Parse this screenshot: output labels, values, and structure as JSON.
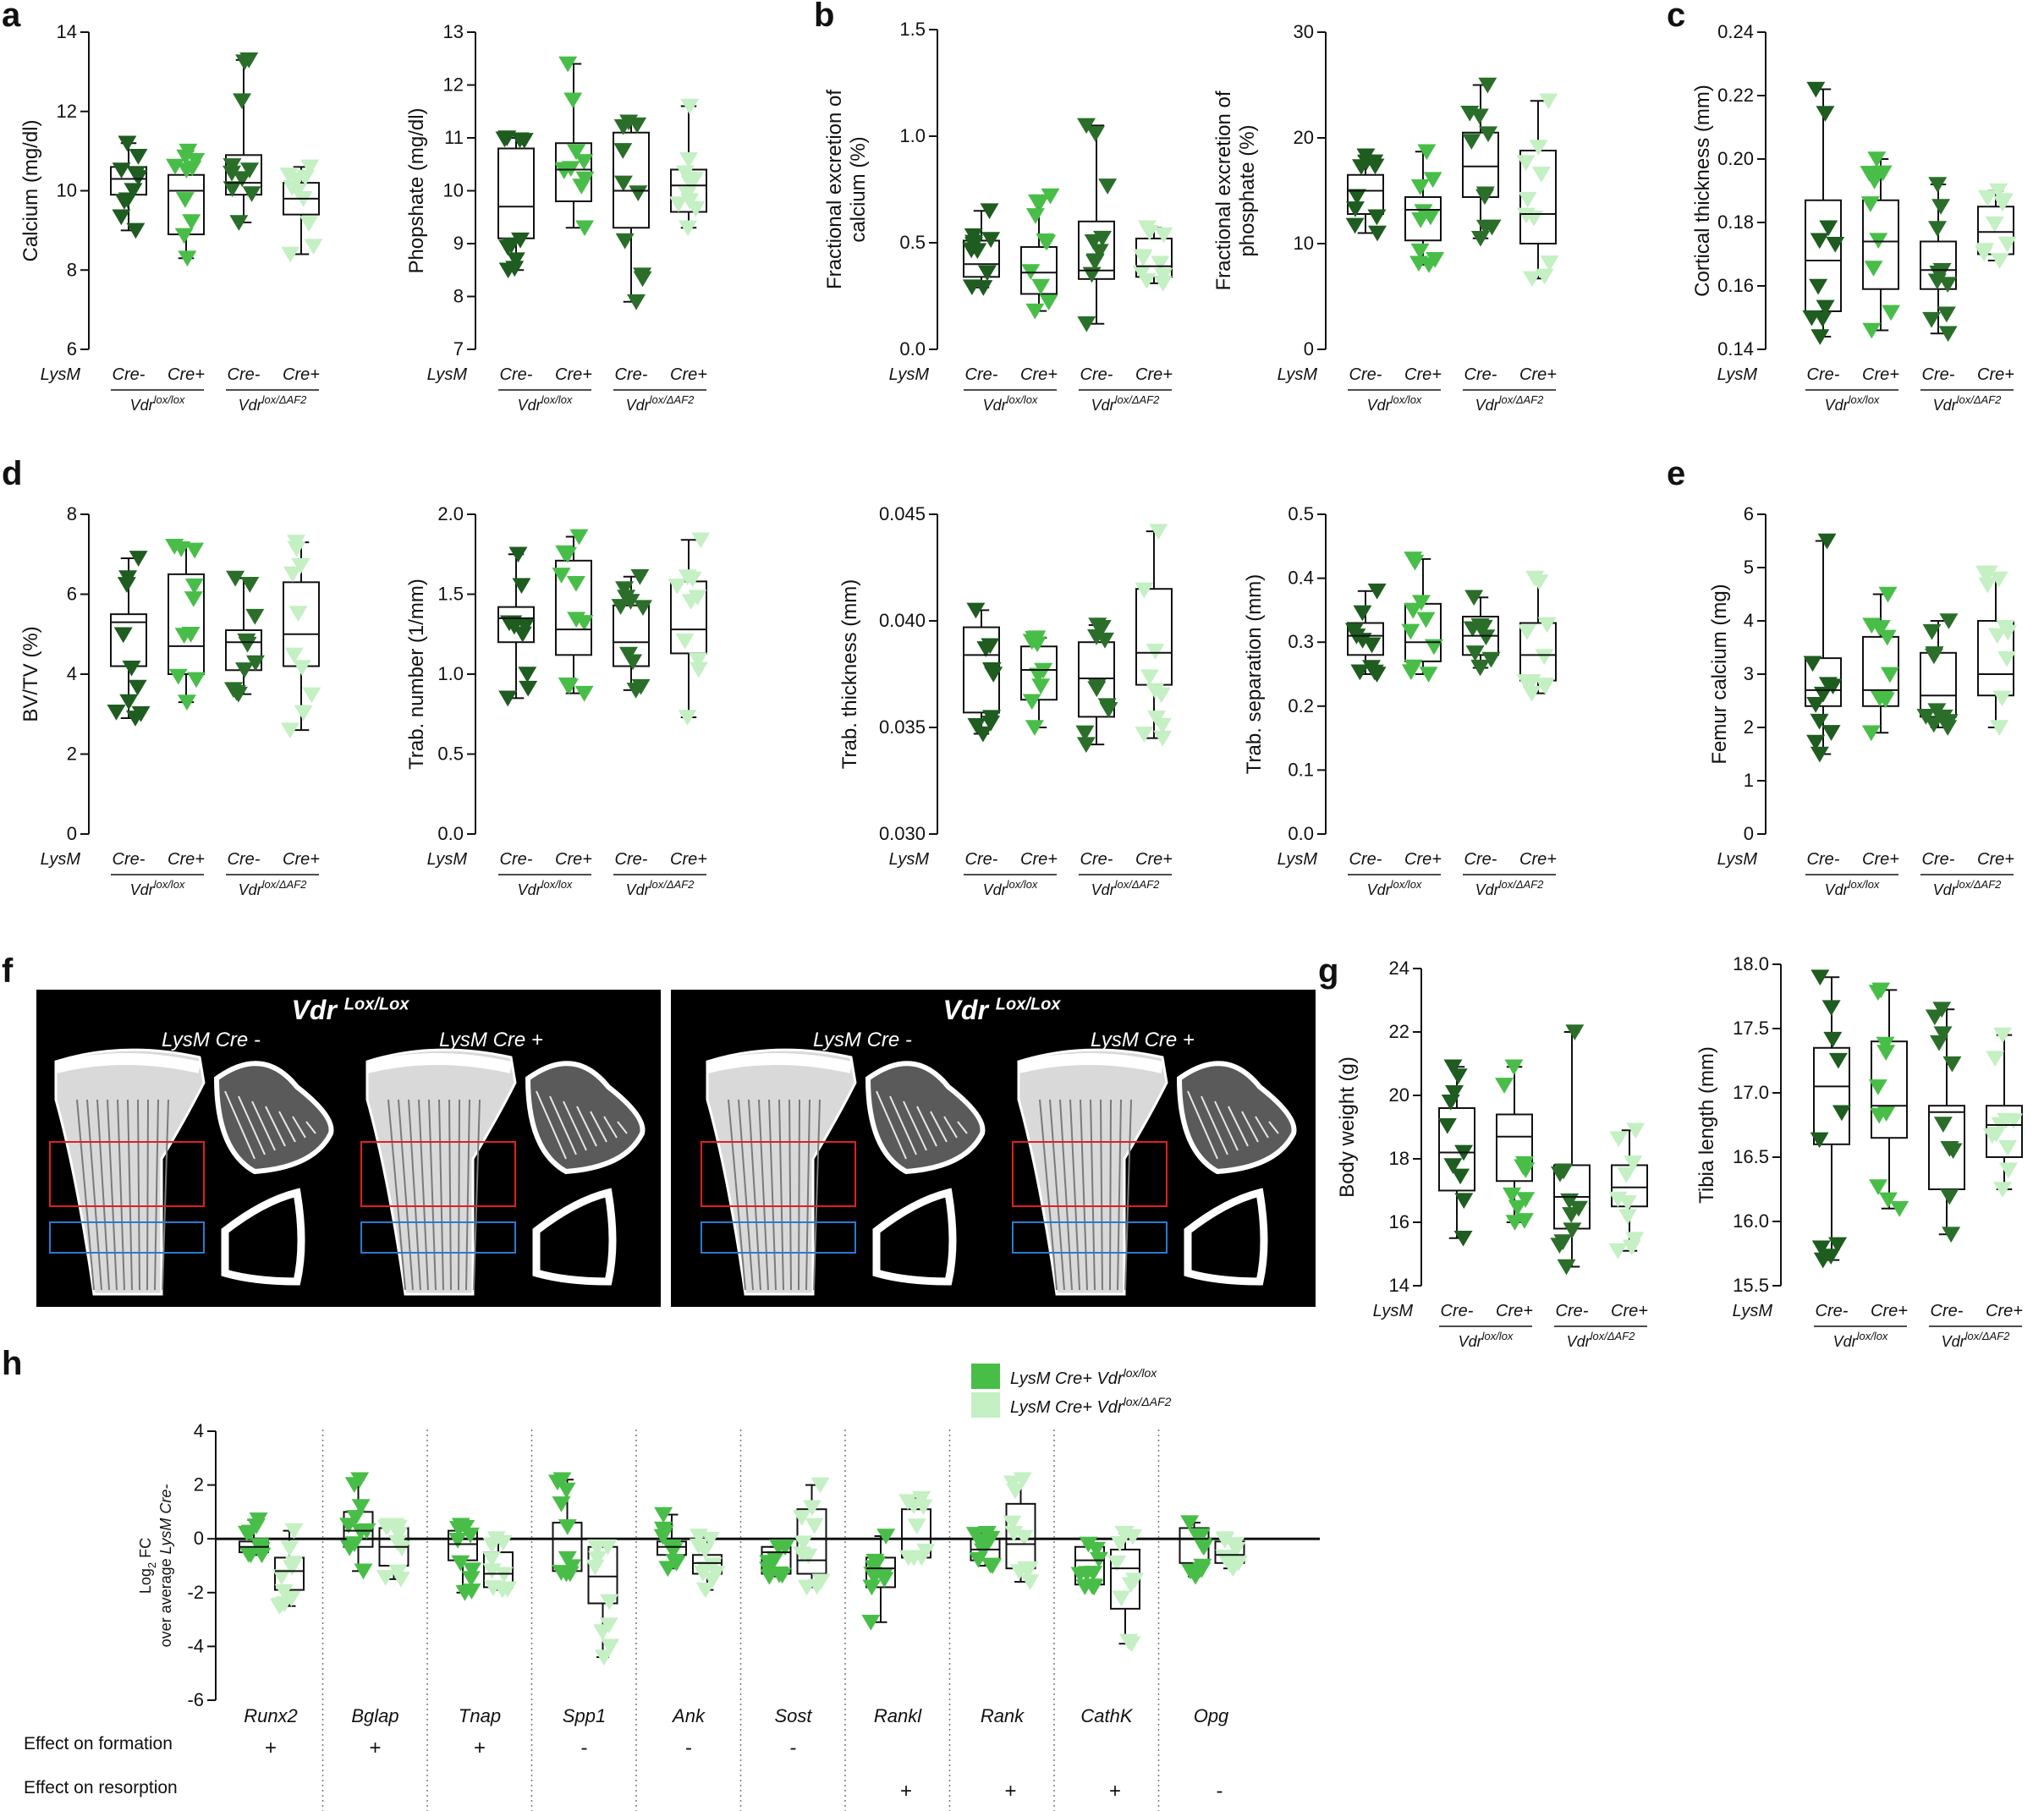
{
  "panel_labels": [
    "a",
    "b",
    "c",
    "d",
    "e",
    "f",
    "g",
    "h"
  ],
  "common": {
    "group_row": "LysM",
    "cre_minus": "Cre-",
    "cre_plus": "Cre+",
    "vdr_lox_base": "Vdr",
    "vdr_lox_sup": "lox/lox",
    "vdr_af2_base": "Vdr",
    "vdr_af2_sup": "lox/ΔAF2"
  },
  "colors": {
    "lox_cre_minus": "#1e5c20",
    "lox_cre_plus": "#48be48",
    "af2_cre_minus": "#2a6e2a",
    "af2_cre_plus": "#c4f0c4"
  },
  "image_panel": {
    "left_title": "Vdr",
    "left_title_sup": "Lox/Lox",
    "right_title": "Vdr",
    "right_title_sup": "Lox/Lox",
    "cond_minus": "LysM Cre -",
    "cond_plus": "LysM Cre +"
  },
  "chart_data": [
    {
      "id": "a1",
      "type": "box",
      "ylabel": "Calcium (mg/dl)",
      "ylim": [
        6,
        14
      ],
      "yticks": [
        "6",
        "8",
        "10",
        "12",
        "14"
      ],
      "groups": [
        {
          "min": 9.0,
          "q1": 9.9,
          "median": 10.3,
          "q3": 10.6,
          "max": 11.2
        },
        {
          "min": 8.3,
          "q1": 8.9,
          "median": 10.0,
          "q3": 10.4,
          "max": 11.0
        },
        {
          "min": 9.2,
          "q1": 9.9,
          "median": 10.2,
          "q3": 10.9,
          "max": 13.3
        },
        {
          "min": 8.4,
          "q1": 9.4,
          "median": 9.8,
          "q3": 10.2,
          "max": 10.6
        }
      ]
    },
    {
      "id": "a2",
      "type": "box",
      "ylabel": "Phopshate (mg/dl)",
      "ylim": [
        7,
        13
      ],
      "yticks": [
        "7",
        "8",
        "9",
        "10",
        "11",
        "12",
        "13"
      ],
      "groups": [
        {
          "min": 8.5,
          "q1": 9.1,
          "median": 9.7,
          "q3": 10.8,
          "max": 11.0
        },
        {
          "min": 9.3,
          "q1": 9.8,
          "median": 10.4,
          "q3": 10.9,
          "max": 12.4
        },
        {
          "min": 7.9,
          "q1": 9.3,
          "median": 10.0,
          "q3": 11.1,
          "max": 11.3
        },
        {
          "min": 9.3,
          "q1": 9.6,
          "median": 10.1,
          "q3": 10.4,
          "max": 11.6
        }
      ]
    },
    {
      "id": "b1",
      "type": "box",
      "ylabel": "Fractional excretion of calcium (%)",
      "ylim": [
        0,
        1.5
      ],
      "yticks": [
        "0.0",
        "0.5",
        "1.0",
        "1.5"
      ],
      "groups": [
        {
          "min": 0.29,
          "q1": 0.34,
          "median": 0.4,
          "q3": 0.51,
          "max": 0.65
        },
        {
          "min": 0.18,
          "q1": 0.26,
          "median": 0.36,
          "q3": 0.48,
          "max": 0.72
        },
        {
          "min": 0.12,
          "q1": 0.33,
          "median": 0.37,
          "q3": 0.6,
          "max": 1.05
        },
        {
          "min": 0.31,
          "q1": 0.34,
          "median": 0.39,
          "q3": 0.52,
          "max": 0.57
        }
      ]
    },
    {
      "id": "b2",
      "type": "box",
      "ylabel": "Fractional excretion of phosphate (%)",
      "ylim": [
        0,
        30
      ],
      "yticks": [
        "0",
        "10",
        "20",
        "30"
      ],
      "groups": [
        {
          "min": 11,
          "q1": 12.8,
          "median": 15.0,
          "q3": 16.5,
          "max": 18.3
        },
        {
          "min": 8,
          "q1": 10.3,
          "median": 13.2,
          "q3": 14.4,
          "max": 18.7
        },
        {
          "min": 10.5,
          "q1": 14.4,
          "median": 17.3,
          "q3": 20.5,
          "max": 25.0
        },
        {
          "min": 6.7,
          "q1": 10.0,
          "median": 12.8,
          "q3": 18.8,
          "max": 23.5
        }
      ]
    },
    {
      "id": "c",
      "type": "box",
      "ylabel": "Cortical thickness (mm)",
      "ylim": [
        0.14,
        0.24
      ],
      "yticks": [
        "0.14",
        "0.16",
        "0.18",
        "0.20",
        "0.22",
        "0.24"
      ],
      "groups": [
        {
          "min": 0.144,
          "q1": 0.152,
          "median": 0.168,
          "q3": 0.187,
          "max": 0.222
        },
        {
          "min": 0.146,
          "q1": 0.159,
          "median": 0.174,
          "q3": 0.187,
          "max": 0.2
        },
        {
          "min": 0.145,
          "q1": 0.159,
          "median": 0.165,
          "q3": 0.174,
          "max": 0.192
        },
        {
          "min": 0.168,
          "q1": 0.17,
          "median": 0.177,
          "q3": 0.185,
          "max": 0.19
        }
      ]
    },
    {
      "id": "d1",
      "type": "box",
      "ylabel": "BV/TV (%)",
      "ylim": [
        0,
        8
      ],
      "yticks": [
        "0",
        "2",
        "4",
        "6",
        "8"
      ],
      "groups": [
        {
          "min": 2.9,
          "q1": 4.2,
          "median": 5.3,
          "q3": 5.5,
          "max": 6.9
        },
        {
          "min": 3.3,
          "q1": 4.0,
          "median": 4.7,
          "q3": 6.5,
          "max": 7.2
        },
        {
          "min": 3.5,
          "q1": 4.1,
          "median": 4.8,
          "q3": 5.1,
          "max": 6.4
        },
        {
          "min": 2.6,
          "q1": 4.2,
          "median": 5.0,
          "q3": 6.3,
          "max": 7.3
        }
      ]
    },
    {
      "id": "d2",
      "type": "box",
      "ylabel": "Trab. number (1/mm)",
      "ylim": [
        0,
        2
      ],
      "yticks": [
        "0.0",
        "0.5",
        "1.0",
        "1.5",
        "2.0"
      ],
      "groups": [
        {
          "min": 0.85,
          "q1": 1.2,
          "median": 1.35,
          "q3": 1.42,
          "max": 1.75
        },
        {
          "min": 0.88,
          "q1": 1.12,
          "median": 1.28,
          "q3": 1.71,
          "max": 1.86
        },
        {
          "min": 0.9,
          "q1": 1.05,
          "median": 1.2,
          "q3": 1.43,
          "max": 1.61
        },
        {
          "min": 0.73,
          "q1": 1.13,
          "median": 1.28,
          "q3": 1.58,
          "max": 1.84
        }
      ]
    },
    {
      "id": "d3",
      "type": "box",
      "ylabel": "Trab. thickness (mm)",
      "ylim": [
        0.03,
        0.045
      ],
      "yticks": [
        "0.030",
        "0.035",
        "0.040",
        "0.045"
      ],
      "groups": [
        {
          "min": 0.0347,
          "q1": 0.0357,
          "median": 0.0384,
          "q3": 0.0397,
          "max": 0.0405
        },
        {
          "min": 0.035,
          "q1": 0.0363,
          "median": 0.0377,
          "q3": 0.0388,
          "max": 0.0392
        },
        {
          "min": 0.0342,
          "q1": 0.0355,
          "median": 0.0373,
          "q3": 0.039,
          "max": 0.0398
        },
        {
          "min": 0.0345,
          "q1": 0.037,
          "median": 0.0385,
          "q3": 0.0415,
          "max": 0.0442
        }
      ]
    },
    {
      "id": "d4",
      "type": "box",
      "ylabel": "Trab. separation (mm)",
      "ylim": [
        0,
        0.5
      ],
      "yticks": [
        "0.0",
        "0.1",
        "0.2",
        "0.3",
        "0.4",
        "0.5"
      ],
      "groups": [
        {
          "min": 0.25,
          "q1": 0.28,
          "median": 0.31,
          "q3": 0.33,
          "max": 0.38
        },
        {
          "min": 0.25,
          "q1": 0.27,
          "median": 0.3,
          "q3": 0.36,
          "max": 0.43
        },
        {
          "min": 0.26,
          "q1": 0.28,
          "median": 0.31,
          "q3": 0.34,
          "max": 0.37
        },
        {
          "min": 0.22,
          "q1": 0.24,
          "median": 0.28,
          "q3": 0.33,
          "max": 0.4
        }
      ]
    },
    {
      "id": "e",
      "type": "box",
      "ylabel": "Femur calcium (mg)",
      "ylim": [
        0,
        6
      ],
      "yticks": [
        "0",
        "1",
        "2",
        "3",
        "4",
        "5",
        "6"
      ],
      "groups": [
        {
          "min": 1.5,
          "q1": 2.4,
          "median": 2.7,
          "q3": 3.3,
          "max": 5.5
        },
        {
          "min": 1.9,
          "q1": 2.4,
          "median": 2.7,
          "q3": 3.7,
          "max": 4.5
        },
        {
          "min": 2.0,
          "q1": 2.2,
          "median": 2.6,
          "q3": 3.4,
          "max": 4.0
        },
        {
          "min": 2.0,
          "q1": 2.6,
          "median": 3.0,
          "q3": 4.0,
          "max": 4.9
        }
      ]
    },
    {
      "id": "g1",
      "type": "box",
      "ylabel": "Body weight (g)",
      "ylim": [
        14,
        24
      ],
      "yticks": [
        "14",
        "16",
        "18",
        "20",
        "22",
        "24"
      ],
      "groups": [
        {
          "min": 15.5,
          "q1": 17.0,
          "median": 18.2,
          "q3": 19.6,
          "max": 20.9
        },
        {
          "min": 16.0,
          "q1": 17.3,
          "median": 18.7,
          "q3": 19.4,
          "max": 20.9
        },
        {
          "min": 14.6,
          "q1": 15.8,
          "median": 16.8,
          "q3": 17.8,
          "max": 22.0
        },
        {
          "min": 15.1,
          "q1": 16.5,
          "median": 17.1,
          "q3": 17.8,
          "max": 18.9
        }
      ]
    },
    {
      "id": "g2",
      "type": "box",
      "ylabel": "Tibia length (mm)",
      "ylim": [
        15.5,
        18
      ],
      "yticks": [
        "15.5",
        "16.0",
        "16.5",
        "17.0",
        "17.5",
        "18.0"
      ],
      "groups": [
        {
          "min": 15.7,
          "q1": 16.6,
          "median": 17.05,
          "q3": 17.35,
          "max": 17.9
        },
        {
          "min": 16.1,
          "q1": 16.65,
          "median": 16.9,
          "q3": 17.4,
          "max": 17.8
        },
        {
          "min": 15.9,
          "q1": 16.25,
          "median": 16.85,
          "q3": 16.9,
          "max": 17.65
        },
        {
          "min": 16.25,
          "q1": 16.5,
          "median": 16.75,
          "q3": 16.9,
          "max": 17.45
        }
      ]
    },
    {
      "id": "h",
      "type": "box",
      "ylabel": "Log2 FC over average LysM Cre-",
      "ylabel_line1": "Log",
      "ylabel_sub": "2",
      "ylabel_line1b": " FC",
      "ylabel_line2a": "over average ",
      "ylabel_line2b": "LysM Cre-",
      "ylim": [
        -6,
        4
      ],
      "yticks": [
        "-6",
        "-4",
        "-2",
        "0",
        "2",
        "4"
      ],
      "legend": [
        {
          "label": "LysM Cre+ Vdr",
          "sup": "lox/lox",
          "color": "#48be48"
        },
        {
          "label": "LysM Cre+ Vdr",
          "sup": "lox/ΔAF2",
          "color": "#c4f0c4"
        }
      ],
      "legend_position": "top-right",
      "genes": [
        "Runx2",
        "Bglap",
        "Tnap",
        "Spp1",
        "Ank",
        "Sost",
        "Rankl",
        "Rank",
        "CathK",
        "Opg"
      ],
      "series": [
        {
          "name": "LysM Cre+ Vdr lox/lox",
          "values": [
            {
              "min": -0.6,
              "q1": -0.5,
              "median": -0.3,
              "q3": -0.1,
              "max": 0.7
            },
            {
              "min": -1.2,
              "q1": -0.3,
              "median": 0.3,
              "q3": 1.0,
              "max": 2.2
            },
            {
              "min": -2.0,
              "q1": -0.8,
              "median": -0.2,
              "q3": 0.3,
              "max": 0.5
            },
            {
              "min": -1.3,
              "q1": -1.2,
              "median": 0.0,
              "q3": 0.6,
              "max": 2.2
            },
            {
              "min": -1.1,
              "q1": -0.6,
              "median": -0.3,
              "q3": -0.1,
              "max": 0.9
            },
            {
              "min": -1.4,
              "q1": -1.3,
              "median": -0.5,
              "q3": -0.3,
              "max": -0.3
            },
            {
              "min": -3.1,
              "q1": -1.8,
              "median": -1.1,
              "q3": -0.7,
              "max": 0.1
            },
            {
              "min": -1.0,
              "q1": -0.8,
              "median": -0.4,
              "q3": 0.0,
              "max": 0.2
            },
            {
              "min": -1.8,
              "q1": -1.7,
              "median": -0.8,
              "q3": -0.3,
              "max": -0.2
            },
            {
              "min": -1.4,
              "q1": -0.9,
              "median": 0.0,
              "q3": 0.4,
              "max": 0.6
            }
          ]
        },
        {
          "name": "LysM Cre+ Vdr lox/ΔAF2",
          "values": [
            {
              "min": -2.5,
              "q1": -1.9,
              "median": -1.2,
              "q3": -0.7,
              "max": 0.3
            },
            {
              "min": -1.5,
              "q1": -1.0,
              "median": -0.3,
              "q3": 0.4,
              "max": 0.5
            },
            {
              "min": -1.9,
              "q1": -1.8,
              "median": -1.3,
              "q3": -0.5,
              "max": 0.0
            },
            {
              "min": -4.4,
              "q1": -2.4,
              "median": -1.4,
              "q3": -0.3,
              "max": -0.3
            },
            {
              "min": -1.9,
              "q1": -1.3,
              "median": -0.9,
              "q3": -0.6,
              "max": 0.1
            },
            {
              "min": -1.8,
              "q1": -1.3,
              "median": -0.8,
              "q3": 1.1,
              "max": 2.0
            },
            {
              "min": -0.7,
              "q1": -0.7,
              "median": 0.0,
              "q3": 1.1,
              "max": 1.5
            },
            {
              "min": -1.6,
              "q1": -1.1,
              "median": -0.2,
              "q3": 1.3,
              "max": 2.2
            },
            {
              "min": -3.9,
              "q1": -2.6,
              "median": -1.1,
              "q3": -0.4,
              "max": 0.2
            },
            {
              "min": -1.1,
              "q1": -0.9,
              "median": -0.6,
              "q3": -0.1,
              "max": 0.0
            }
          ]
        }
      ],
      "row_formation_label": "Effect on formation",
      "row_resorption_label": "Effect on resorption",
      "formation": [
        "+",
        "+",
        "+",
        "-",
        "-",
        "-",
        "",
        "",
        "",
        ""
      ],
      "resorption": [
        "",
        "",
        "",
        "",
        "",
        "",
        "+",
        "+",
        "+",
        "-"
      ]
    }
  ]
}
